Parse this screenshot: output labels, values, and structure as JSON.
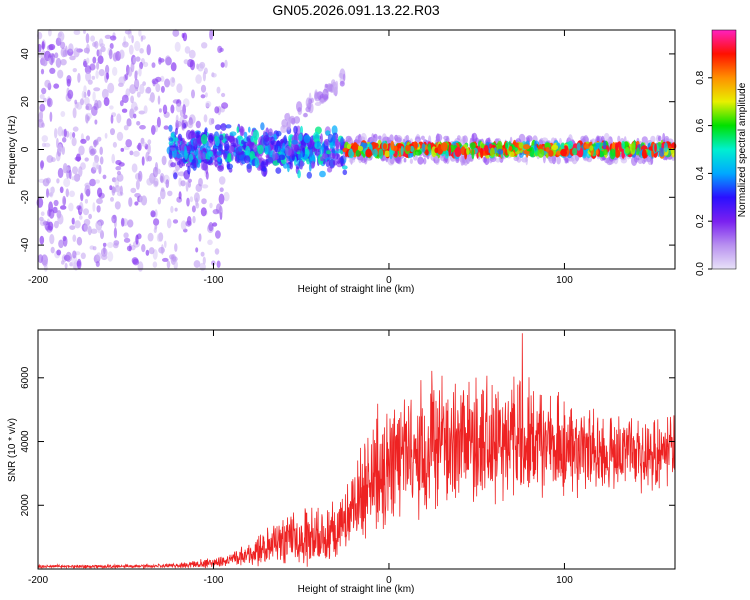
{
  "title": "GN05.2026.091.13.22.R03",
  "colors": {
    "line": "#ee2222",
    "frame": "#000000",
    "colormap": [
      "#e8e2f8",
      "#b890f0",
      "#7a20f0",
      "#2a10ff",
      "#00a8ff",
      "#00f0d0",
      "#00e000",
      "#e8f000",
      "#ff9000",
      "#ff1000",
      "#ff20c0"
    ]
  },
  "chart_data": [
    {
      "type": "heatmap",
      "name": "spectrogram",
      "title": "GN05.2026.091.13.22.R03",
      "xlabel": "Height of straight line (km)",
      "ylabel": "Frequency (Hz)",
      "xlim": [
        -200,
        163
      ],
      "ylim": [
        -50,
        50
      ],
      "xticks": [
        -200,
        -100,
        0,
        100
      ],
      "yticks": [
        -40,
        -20,
        0,
        20,
        40
      ],
      "colorbar": {
        "label": "Normalized spectral amplitude",
        "range": [
          0,
          1
        ],
        "ticks": [
          "0.0",
          "0.2",
          "0.4",
          "0.6",
          "0.8"
        ],
        "tick_values": [
          0.0,
          0.2,
          0.4,
          0.6,
          0.8
        ]
      },
      "features": [
        {
          "region": "noise",
          "x_range": [
            -200,
            -92
          ],
          "freq_range": [
            -50,
            50
          ],
          "amplitude": 0.1
        },
        {
          "region": "broad band",
          "x_range": [
            -125,
            -25
          ],
          "freq_center": 0,
          "freq_halfwidth": 6,
          "amplitude": 0.3
        },
        {
          "region": "tone",
          "x_range": [
            -25,
            163
          ],
          "freq_center": 0,
          "freq_halfwidth": 2,
          "amplitude": 0.9
        },
        {
          "region": "faint rising streak",
          "x_range": [
            -60,
            -25
          ],
          "freq_range": [
            10,
            30
          ],
          "amplitude": 0.1
        }
      ]
    },
    {
      "type": "line",
      "name": "snr",
      "xlabel": "Height of straight line (km)",
      "ylabel": "SNR (10 * v/v)",
      "xlim": [
        -200,
        163
      ],
      "ylim": [
        0,
        7500
      ],
      "xticks": [
        -200,
        -100,
        0,
        100
      ],
      "yticks": [
        2000,
        4000,
        6000
      ],
      "series": [
        {
          "name": "SNR",
          "x": [
            -200,
            -180,
            -160,
            -140,
            -120,
            -100,
            -90,
            -80,
            -70,
            -60,
            -50,
            -40,
            -30,
            -20,
            -15,
            -10,
            -5,
            0,
            10,
            20,
            30,
            40,
            50,
            60,
            70,
            80,
            90,
            100,
            110,
            120,
            130,
            140,
            150,
            163
          ],
          "base": [
            80,
            80,
            80,
            90,
            110,
            200,
            300,
            450,
            650,
            900,
            1000,
            1000,
            1200,
            1900,
            2600,
            3000,
            3200,
            3400,
            3600,
            3800,
            3900,
            4000,
            4000,
            4100,
            4100,
            4000,
            3900,
            3800,
            3700,
            3700,
            3700,
            3600,
            3600,
            3700
          ],
          "spread": [
            60,
            60,
            60,
            70,
            80,
            180,
            250,
            400,
            700,
            900,
            1000,
            1000,
            1100,
            1500,
            1900,
            2100,
            2200,
            2200,
            2300,
            2400,
            2500,
            2500,
            2500,
            2400,
            2300,
            2200,
            2000,
            1800,
            1600,
            1500,
            1400,
            1300,
            1300,
            1200
          ],
          "peak": 7400,
          "peak_x": 76
        }
      ]
    }
  ]
}
